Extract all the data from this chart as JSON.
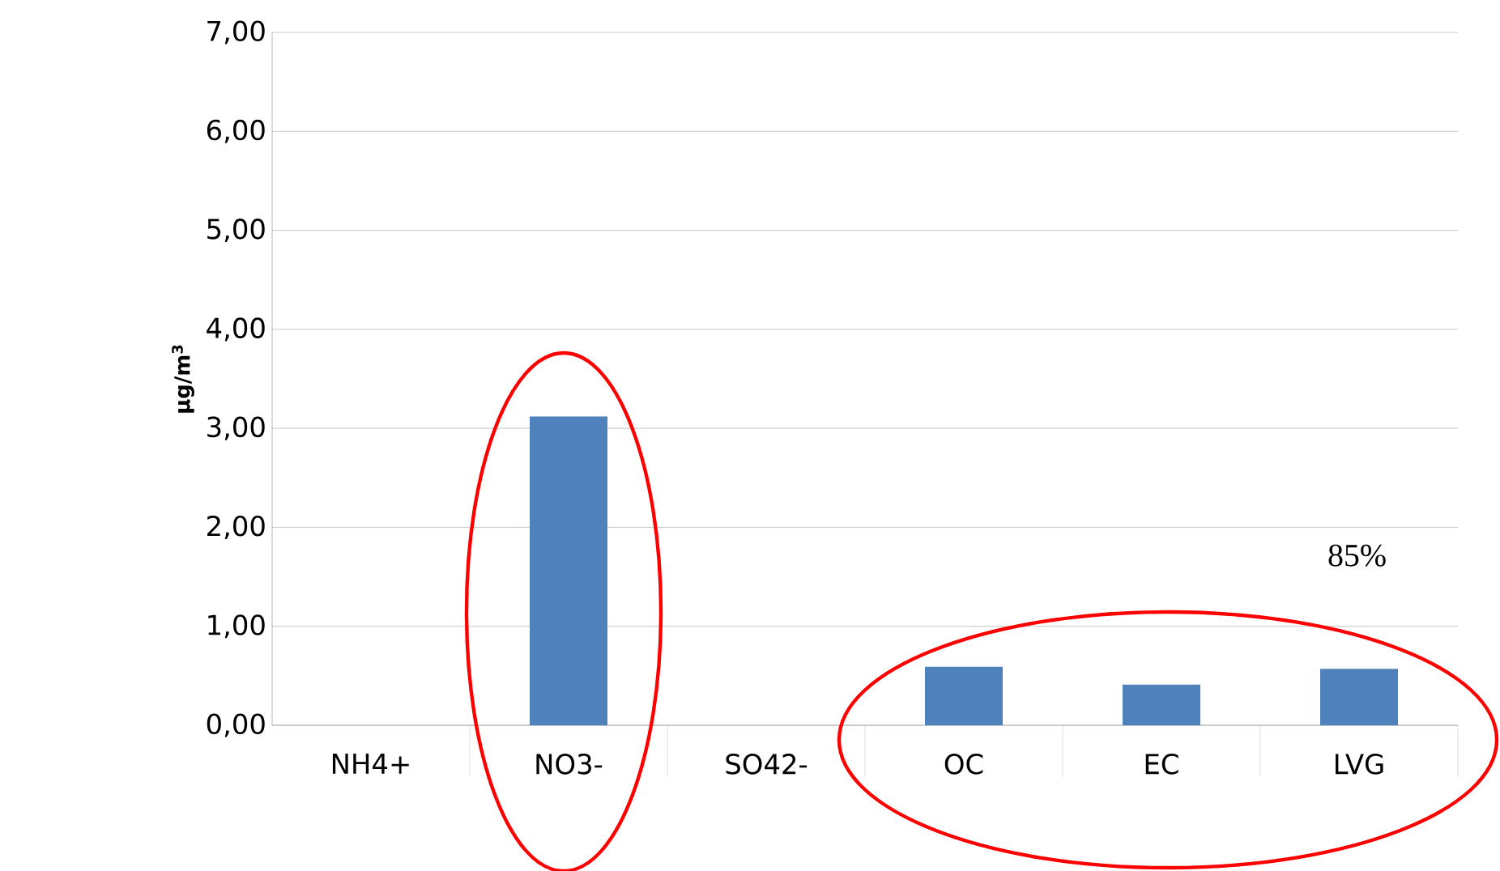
{
  "chart_data": {
    "type": "bar",
    "ylabel": "µg/m$^{3}$",
    "categories": [
      "NH4+",
      "NO3-",
      "SO42-",
      "OC",
      "EC",
      "LVG"
    ],
    "values": [
      null,
      3.12,
      null,
      0.59,
      0.41,
      0.57
    ],
    "color": "#4f81bd",
    "ylim": [
      0,
      7
    ],
    "yticks": [
      {
        "value": 0,
        "label": "0,00"
      },
      {
        "value": 1,
        "label": "1,00"
      },
      {
        "value": 2,
        "label": "2,00"
      },
      {
        "value": 3,
        "label": "3,00"
      },
      {
        "value": 4,
        "label": "4,00"
      },
      {
        "value": 5,
        "label": "5,00"
      },
      {
        "value": 6,
        "label": "6,00"
      },
      {
        "value": 7,
        "label": "7,00"
      }
    ],
    "grid": "y",
    "annotations": [
      "85%"
    ]
  }
}
